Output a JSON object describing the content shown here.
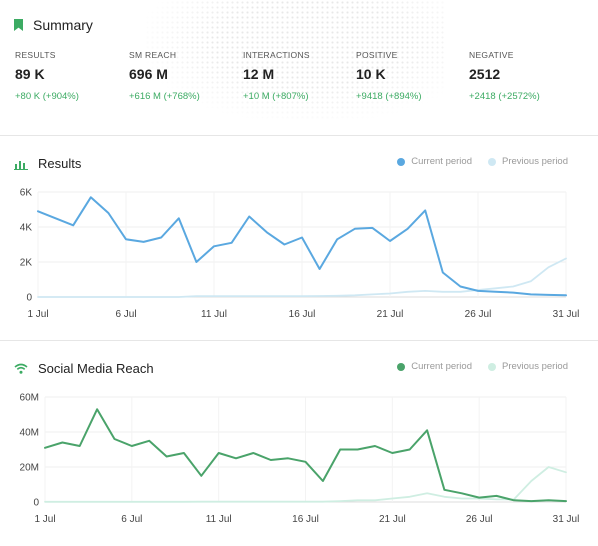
{
  "summary": {
    "title": "Summary",
    "metrics": [
      {
        "label": "RESULTS",
        "value": "89 K",
        "change": "+80 K (+904%)"
      },
      {
        "label": "SM REACH",
        "value": "696 M",
        "change": "+616 M (+768%)"
      },
      {
        "label": "INTERACTIONS",
        "value": "12 M",
        "change": "+10 M (+807%)"
      },
      {
        "label": "POSITIVE",
        "value": "10 K",
        "change": "+9418 (+894%)"
      },
      {
        "label": "NEGATIVE",
        "value": "2512",
        "change": "+2418 (+2572%)"
      }
    ]
  },
  "colors": {
    "accent": "#3cab63",
    "results_current": "#5aa8e0",
    "results_previous": "#cfe8f3",
    "reach_current": "#4aa36a",
    "reach_previous": "#cfeee2"
  },
  "chart_data": [
    {
      "type": "line",
      "title": "Results",
      "icon": "bar-chart-icon",
      "x_ticks": [
        "1 Jul",
        "6 Jul",
        "11 Jul",
        "16 Jul",
        "21 Jul",
        "26 Jul",
        "31 Jul"
      ],
      "y_ticks": [
        "6K",
        "4K",
        "2K",
        "0"
      ],
      "ylim": [
        0,
        6000
      ],
      "x": [
        1,
        2,
        3,
        4,
        5,
        6,
        7,
        8,
        9,
        10,
        11,
        12,
        13,
        14,
        15,
        16,
        17,
        18,
        19,
        20,
        21,
        22,
        23,
        24,
        25,
        26,
        27,
        28,
        29,
        30,
        31
      ],
      "legend_position": "top-right",
      "series": [
        {
          "name": "Current period",
          "values": [
            4900,
            4500,
            4100,
            5700,
            4800,
            3300,
            3150,
            3400,
            4500,
            2000,
            2900,
            3100,
            4600,
            3700,
            3000,
            3400,
            1600,
            3300,
            3900,
            3950,
            3200,
            3900,
            4950,
            1400,
            600,
            350,
            300,
            250,
            150,
            120,
            100
          ]
        },
        {
          "name": "Previous period",
          "values": [
            0,
            0,
            0,
            0,
            0,
            0,
            0,
            0,
            0,
            50,
            50,
            50,
            50,
            50,
            50,
            50,
            60,
            70,
            100,
            150,
            200,
            300,
            350,
            300,
            300,
            400,
            500,
            600,
            900,
            1700,
            2200
          ]
        }
      ]
    },
    {
      "type": "line",
      "title": "Social Media Reach",
      "icon": "wifi-icon",
      "x_ticks": [
        "1 Jul",
        "6 Jul",
        "11 Jul",
        "16 Jul",
        "21 Jul",
        "26 Jul",
        "31 Jul"
      ],
      "y_ticks": [
        "60M",
        "40M",
        "20M",
        "0"
      ],
      "ylim": [
        0,
        60000000
      ],
      "x": [
        1,
        2,
        3,
        4,
        5,
        6,
        7,
        8,
        9,
        10,
        11,
        12,
        13,
        14,
        15,
        16,
        17,
        18,
        19,
        20,
        21,
        22,
        23,
        24,
        25,
        26,
        27,
        28,
        29,
        30,
        31
      ],
      "legend_position": "top-right",
      "series": [
        {
          "name": "Current period",
          "values": [
            31000000,
            34000000,
            32000000,
            53000000,
            36000000,
            32000000,
            35000000,
            26000000,
            28000000,
            15000000,
            28000000,
            25000000,
            28000000,
            24000000,
            25000000,
            23000000,
            12000000,
            30000000,
            30000000,
            32000000,
            28000000,
            30000000,
            41000000,
            7000000,
            5000000,
            2500000,
            3500000,
            1000000,
            500000,
            1000000,
            500000
          ]
        },
        {
          "name": "Previous period",
          "values": [
            100000,
            100000,
            100000,
            100000,
            100000,
            100000,
            100000,
            100000,
            100000,
            200000,
            200000,
            200000,
            200000,
            200000,
            200000,
            200000,
            200000,
            500000,
            1000000,
            1000000,
            2000000,
            3000000,
            5000000,
            3000000,
            2000000,
            2000000,
            1500000,
            1500000,
            12000000,
            20000000,
            17000000
          ]
        }
      ]
    }
  ]
}
